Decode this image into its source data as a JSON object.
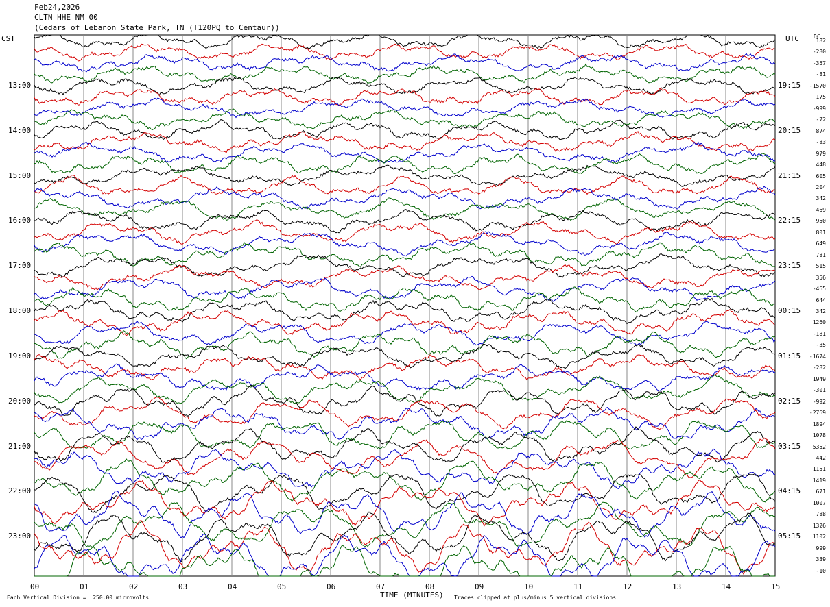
{
  "header": {
    "date": "Feb24,2026",
    "station": "CLTN HHE NM 00",
    "location": "(Cedars of Lebanon State Park, TN (T120PQ to Centaur))"
  },
  "left_tz": "CST",
  "right_tz": "UTC",
  "dc_label": "DC",
  "footer": {
    "scale_note": "Each Vertical Division =  250.00 microvolts",
    "xlabel": "TIME (MINUTES)",
    "clip_note": "Traces clipped at plus/minus 5 vertical divisions"
  },
  "colors": [
    "#000000",
    "#d40000",
    "#0000cc",
    "#006400"
  ],
  "chart_data": {
    "type": "line",
    "title": "CLTN HHE NM 00",
    "xlabel": "TIME (MINUTES)",
    "xlim": [
      0,
      15
    ],
    "x_ticks": [
      "00",
      "01",
      "02",
      "03",
      "04",
      "05",
      "06",
      "07",
      "08",
      "09",
      "10",
      "11",
      "12",
      "13",
      "14",
      "15"
    ],
    "grid": "vertical",
    "trace_count": 48,
    "cst_hour_labels": [
      "13:00",
      "14:00",
      "15:00",
      "16:00",
      "17:00",
      "18:00",
      "19:00",
      "20:00",
      "21:00",
      "22:00",
      "23:00"
    ],
    "utc_hour_labels": [
      "19:15",
      "20:15",
      "21:15",
      "22:15",
      "23:15",
      "00:15",
      "01:15",
      "02:15",
      "03:15",
      "04:15",
      "05:15"
    ],
    "dc_offsets": [
      "182",
      "-280",
      "-357",
      "-81",
      "-1570",
      "175",
      "-999",
      "-72",
      "874",
      "-83",
      "979",
      "448",
      "605",
      "204",
      "342",
      "469",
      "950",
      "801",
      "649",
      "781",
      "515",
      "356",
      "-465",
      "644",
      "342",
      "1260",
      "-181",
      "-35",
      "-1674",
      "-282",
      "1949",
      "-301",
      "-992",
      "-2769",
      "1894",
      "1078",
      "5352",
      "442",
      "1151",
      "1419",
      "671",
      "1007",
      "788",
      "1326",
      "1102",
      "999",
      "339",
      "-10"
    ]
  }
}
